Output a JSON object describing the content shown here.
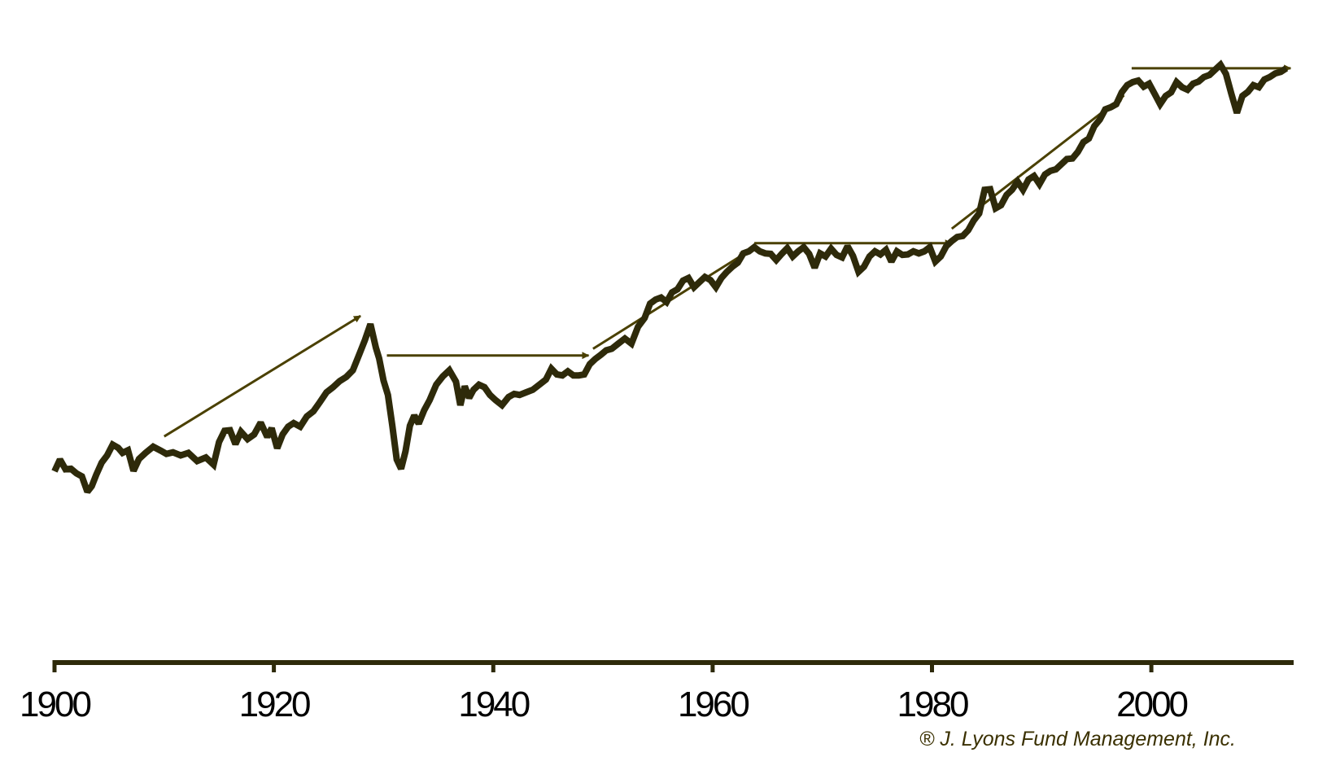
{
  "colors": {
    "series": "#2e2a0a",
    "arrow": "#4a4000",
    "axis": "#2e2a0a",
    "copyright": "#3a3000"
  },
  "copyright": "® J. Lyons Fund Management, Inc.",
  "chart_data": {
    "type": "line",
    "title": "",
    "xlabel": "",
    "ylabel": "",
    "xlim": [
      1900,
      2012.6
    ],
    "ylim": [
      0,
      1
    ],
    "grid": false,
    "y_axis_shown": false,
    "x_ticks": [
      1900,
      1920,
      1940,
      1960,
      1980,
      2000
    ],
    "x_tick_labels": [
      "1900",
      "1920",
      "1940",
      "1960",
      "1980",
      "2000"
    ],
    "series": [
      {
        "x": [
          1900.0,
          1900.5,
          1901.0,
          1901.5,
          1902.0,
          1902.5,
          1903.0,
          1903.4,
          1903.8,
          1904.3,
          1904.8,
          1905.3,
          1905.8,
          1906.2,
          1906.7,
          1907.2,
          1907.7,
          1908.3,
          1909.0,
          1909.7,
          1910.2,
          1910.8,
          1911.5,
          1912.2,
          1913.0,
          1913.8,
          1914.5,
          1915.0,
          1915.5,
          1916.0,
          1916.5,
          1917.0,
          1917.6,
          1918.2,
          1918.8,
          1919.4,
          1919.8,
          1920.3,
          1920.8,
          1921.3,
          1921.8,
          1922.4,
          1923.0,
          1923.6,
          1924.2,
          1924.8,
          1925.4,
          1926.0,
          1926.6,
          1927.2,
          1927.8,
          1928.3,
          1928.8,
          1929.3,
          1929.6,
          1930.0,
          1930.4,
          1930.8,
          1931.2,
          1931.6,
          1932.0,
          1932.4,
          1932.8,
          1933.2,
          1933.7,
          1934.2,
          1934.8,
          1935.4,
          1936.0,
          1936.6,
          1937.0,
          1937.4,
          1937.8,
          1938.2,
          1938.7,
          1939.2,
          1939.7,
          1940.2,
          1940.8,
          1941.4,
          1941.9,
          1942.4,
          1943.0,
          1943.6,
          1944.2,
          1944.8,
          1945.3,
          1945.8,
          1946.3,
          1946.8,
          1947.3,
          1947.8,
          1948.3,
          1948.8,
          1949.3,
          1949.8,
          1950.3,
          1950.8,
          1951.4,
          1952.0,
          1952.6,
          1953.2,
          1953.8,
          1954.3,
          1954.8,
          1955.3,
          1955.8,
          1956.3,
          1956.8,
          1957.3,
          1957.8,
          1958.3,
          1958.8,
          1959.3,
          1959.8,
          1960.3,
          1960.8,
          1961.3,
          1961.8,
          1962.3,
          1962.8,
          1963.3,
          1963.8,
          1964.3,
          1964.8,
          1965.3,
          1965.8,
          1966.3,
          1966.8,
          1967.3,
          1967.8,
          1968.3,
          1968.8,
          1969.3,
          1969.8,
          1970.3,
          1970.8,
          1971.3,
          1971.8,
          1972.3,
          1972.8,
          1973.3,
          1973.8,
          1974.3,
          1974.8,
          1975.3,
          1975.8,
          1976.3,
          1976.8,
          1977.3,
          1977.8,
          1978.3,
          1978.8,
          1979.3,
          1979.8,
          1980.3,
          1980.8,
          1981.3,
          1981.8,
          1982.3,
          1982.8,
          1983.3,
          1983.8,
          1984.3,
          1984.8,
          1985.3,
          1985.8,
          1986.3,
          1986.8,
          1987.3,
          1987.8,
          1988.3,
          1988.8,
          1989.3,
          1989.8,
          1990.3,
          1990.8,
          1991.3,
          1991.8,
          1992.3,
          1992.8,
          1993.3,
          1993.8,
          1994.3,
          1994.8,
          1995.3,
          1995.8,
          1996.3,
          1996.8,
          1997.3,
          1997.8,
          1998.3,
          1998.8,
          1999.3,
          1999.8,
          2000.3,
          2000.8,
          2001.3,
          2001.8,
          2002.3,
          2002.8,
          2003.3,
          2003.8,
          2004.3,
          2004.8,
          2005.3,
          2005.8,
          2006.3,
          2006.8,
          2007.3,
          2007.8,
          2008.3,
          2008.8,
          2009.3,
          2009.8,
          2010.3,
          2010.8,
          2011.3,
          2011.8,
          2012.3
        ],
        "y": [
          0.192,
          0.215,
          0.196,
          0.197,
          0.188,
          0.182,
          0.152,
          0.163,
          0.185,
          0.209,
          0.223,
          0.244,
          0.238,
          0.228,
          0.233,
          0.193,
          0.216,
          0.228,
          0.24,
          0.232,
          0.226,
          0.229,
          0.223,
          0.228,
          0.212,
          0.219,
          0.205,
          0.249,
          0.271,
          0.272,
          0.245,
          0.269,
          0.255,
          0.264,
          0.287,
          0.259,
          0.276,
          0.237,
          0.264,
          0.279,
          0.286,
          0.279,
          0.299,
          0.309,
          0.327,
          0.346,
          0.356,
          0.368,
          0.376,
          0.389,
          0.421,
          0.448,
          0.479,
          0.433,
          0.412,
          0.369,
          0.341,
          0.281,
          0.215,
          0.197,
          0.231,
          0.281,
          0.301,
          0.285,
          0.311,
          0.331,
          0.361,
          0.377,
          0.389,
          0.367,
          0.321,
          0.358,
          0.335,
          0.351,
          0.361,
          0.356,
          0.341,
          0.331,
          0.321,
          0.337,
          0.343,
          0.341,
          0.346,
          0.351,
          0.361,
          0.371,
          0.392,
          0.381,
          0.379,
          0.387,
          0.379,
          0.379,
          0.381,
          0.401,
          0.411,
          0.419,
          0.428,
          0.431,
          0.441,
          0.451,
          0.441,
          0.474,
          0.491,
          0.519,
          0.527,
          0.531,
          0.522,
          0.541,
          0.547,
          0.564,
          0.569,
          0.551,
          0.561,
          0.571,
          0.565,
          0.551,
          0.569,
          0.581,
          0.591,
          0.599,
          0.617,
          0.621,
          0.629,
          0.621,
          0.617,
          0.616,
          0.604,
          0.616,
          0.627,
          0.611,
          0.621,
          0.629,
          0.616,
          0.589,
          0.617,
          0.611,
          0.626,
          0.614,
          0.609,
          0.631,
          0.612,
          0.581,
          0.591,
          0.611,
          0.621,
          0.615,
          0.624,
          0.601,
          0.621,
          0.614,
          0.615,
          0.621,
          0.617,
          0.621,
          0.629,
          0.601,
          0.611,
          0.631,
          0.641,
          0.649,
          0.651,
          0.662,
          0.681,
          0.695,
          0.741,
          0.742,
          0.705,
          0.711,
          0.731,
          0.741,
          0.757,
          0.741,
          0.761,
          0.768,
          0.752,
          0.771,
          0.778,
          0.781,
          0.791,
          0.801,
          0.802,
          0.815,
          0.834,
          0.841,
          0.865,
          0.878,
          0.898,
          0.902,
          0.908,
          0.931,
          0.945,
          0.951,
          0.954,
          0.942,
          0.948,
          0.928,
          0.908,
          0.924,
          0.931,
          0.951,
          0.941,
          0.936,
          0.948,
          0.952,
          0.961,
          0.965,
          0.975,
          0.985,
          0.967,
          0.928,
          0.891,
          0.924,
          0.932,
          0.945,
          0.941,
          0.956,
          0.961,
          0.968,
          0.971,
          0.978
        ]
      }
    ],
    "arrows": [
      {
        "x1": 1910.0,
        "y1": 0.26,
        "x2": 1927.9,
        "y2": 0.495
      },
      {
        "x1": 1930.3,
        "y1": 0.418,
        "x2": 1948.7,
        "y2": 0.418
      },
      {
        "x1": 1949.1,
        "y1": 0.431,
        "x2": 1963.1,
        "y2": 0.619
      },
      {
        "x1": 1963.8,
        "y1": 0.637,
        "x2": 1981.8,
        "y2": 0.637
      },
      {
        "x1": 1981.8,
        "y1": 0.665,
        "x2": 1997.5,
        "y2": 0.925
      },
      {
        "x1": 1998.2,
        "y1": 0.978,
        "x2": 2012.7,
        "y2": 0.978
      }
    ]
  }
}
